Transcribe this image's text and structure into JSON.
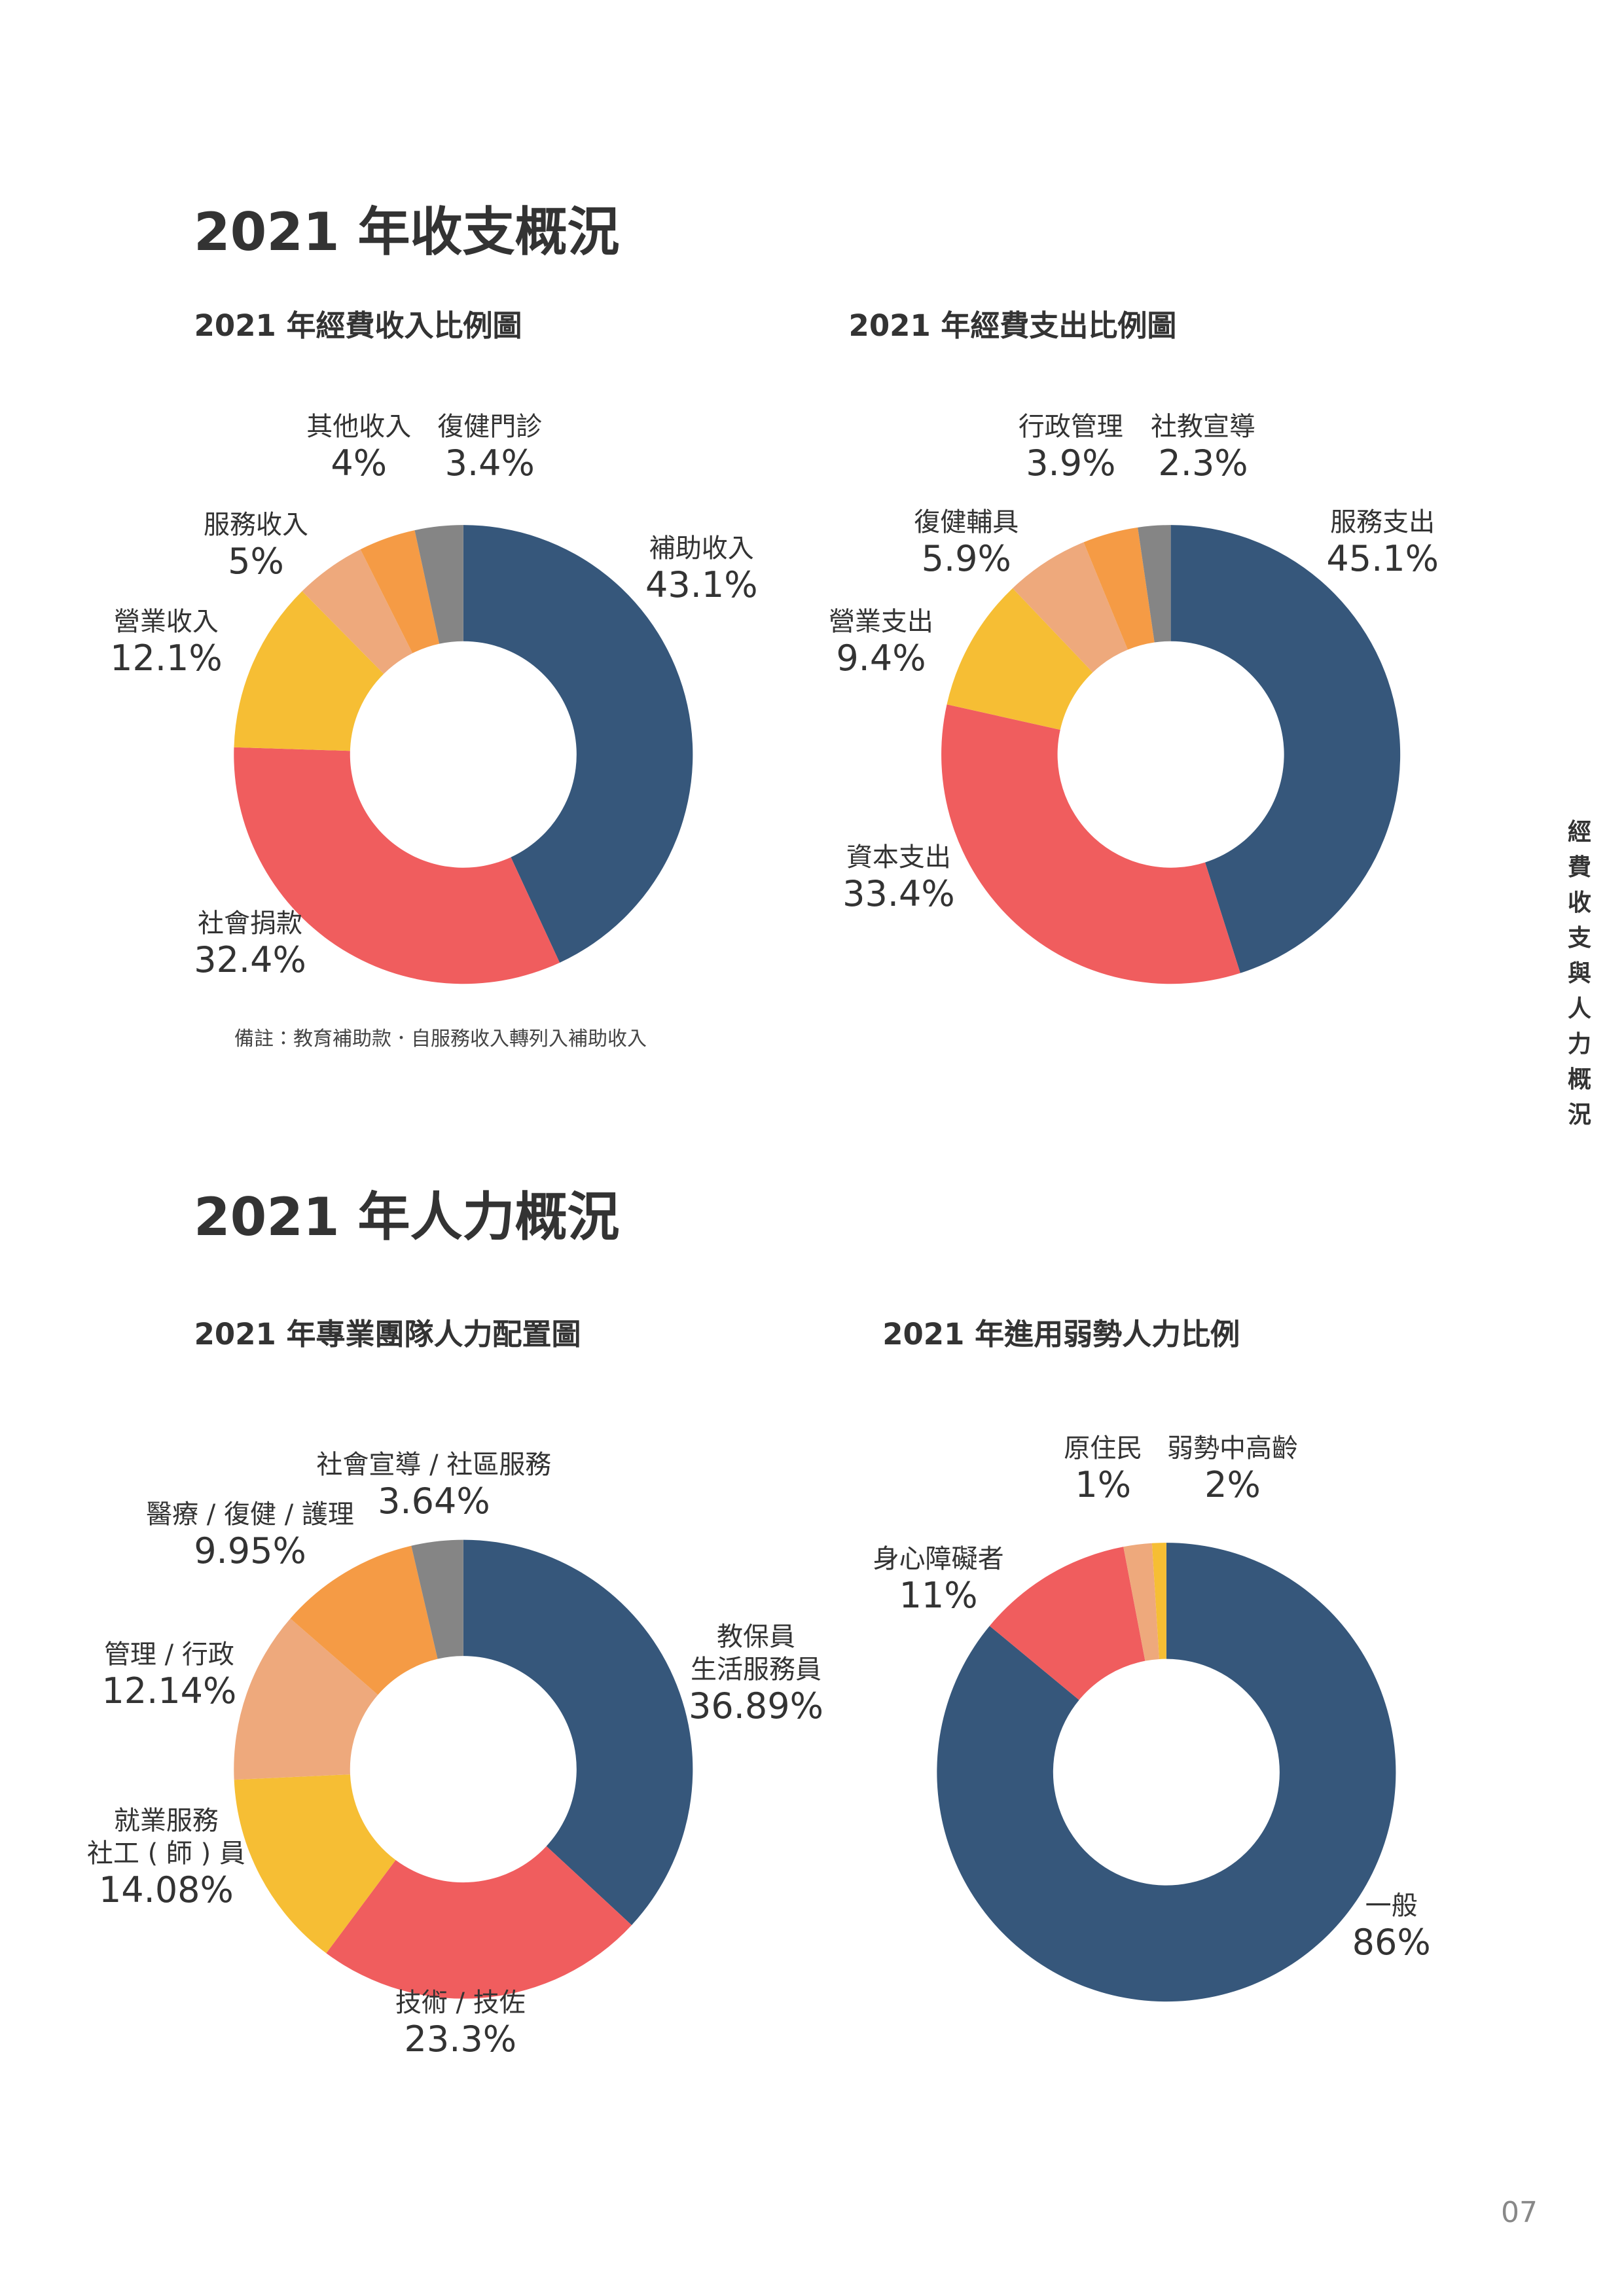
{
  "sections": [
    {
      "title": "2021 年收支概況"
    },
    {
      "title": "2021 年人力概況"
    }
  ],
  "note": "備註：教育補助款．自服務收入轉列入補助收入",
  "side_label": "經費收支與人力概況",
  "page_number": "07",
  "chart_data": [
    {
      "type": "donut",
      "title": "2021 年經費收入比例圖",
      "categories": [
        "補助收入",
        "社會捐款",
        "營業收入",
        "服務收入",
        "其他收入",
        "復健門診"
      ],
      "values": [
        43.1,
        32.4,
        12.1,
        5,
        4,
        3.4
      ],
      "value_labels": [
        "43.1%",
        "32.4%",
        "12.1%",
        "5%",
        "4%",
        "3.4%"
      ],
      "colors": [
        "#36577b",
        "#f05d5e",
        "#f6be34",
        "#eea97c",
        "#f59b45",
        "#858585"
      ]
    },
    {
      "type": "donut",
      "title": "2021 年經費支出比例圖",
      "categories": [
        "服務支出",
        "資本支出",
        "營業支出",
        "復健輔具",
        "行政管理",
        "社教宣導"
      ],
      "values": [
        45.1,
        33.4,
        9.4,
        5.9,
        3.9,
        2.3
      ],
      "value_labels": [
        "45.1%",
        "33.4%",
        "9.4%",
        "5.9%",
        "3.9%",
        "2.3%"
      ],
      "colors": [
        "#36577b",
        "#f05d5e",
        "#f6be34",
        "#eea97c",
        "#f59b45",
        "#858585"
      ]
    },
    {
      "type": "donut",
      "title": "2021 年專業團隊人力配置圖",
      "categories": [
        "教保員\n生活服務員",
        "技術 / 技佐",
        "就業服務\n社工 ( 師 ) 員",
        "管理 / 行政",
        "醫療 / 復健 / 護理",
        "社會宣導 / 社區服務"
      ],
      "values": [
        36.89,
        23.3,
        14.08,
        12.14,
        9.95,
        3.64
      ],
      "value_labels": [
        "36.89%",
        "23.3%",
        "14.08%",
        "12.14%",
        "9.95%",
        "3.64%"
      ],
      "colors": [
        "#36577b",
        "#f05d5e",
        "#f6be34",
        "#eea97c",
        "#f59b45",
        "#858585"
      ]
    },
    {
      "type": "donut",
      "title": "2021 年進用弱勢人力比例",
      "categories": [
        "一般",
        "身心障礙者",
        "弱勢中高齡",
        "原住民"
      ],
      "values": [
        86,
        11,
        2,
        1
      ],
      "value_labels": [
        "86%",
        "11%",
        "2%",
        "1%"
      ],
      "colors": [
        "#36577b",
        "#f05d5e",
        "#eea97c",
        "#f6be34"
      ]
    }
  ]
}
